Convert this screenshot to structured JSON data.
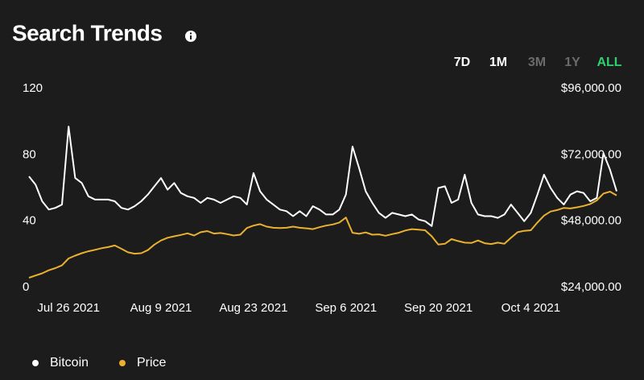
{
  "header": {
    "title": "Search Trends",
    "timeframes": [
      {
        "label": "7D",
        "color": "#ffffff"
      },
      {
        "label": "1M",
        "color": "#ffffff"
      },
      {
        "label": "3M",
        "color": "#6b6b6b"
      },
      {
        "label": "1Y",
        "color": "#6b6b6b"
      },
      {
        "label": "ALL",
        "color": "#2fd16d"
      }
    ]
  },
  "chart_data": {
    "type": "line",
    "x": [
      "2021-07-20",
      "2021-07-21",
      "2021-07-22",
      "2021-07-23",
      "2021-07-24",
      "2021-07-25",
      "2021-07-26",
      "2021-07-27",
      "2021-07-28",
      "2021-07-29",
      "2021-07-30",
      "2021-07-31",
      "2021-08-01",
      "2021-08-02",
      "2021-08-03",
      "2021-08-04",
      "2021-08-05",
      "2021-08-06",
      "2021-08-07",
      "2021-08-08",
      "2021-08-09",
      "2021-08-10",
      "2021-08-11",
      "2021-08-12",
      "2021-08-13",
      "2021-08-14",
      "2021-08-15",
      "2021-08-16",
      "2021-08-17",
      "2021-08-18",
      "2021-08-19",
      "2021-08-20",
      "2021-08-21",
      "2021-08-22",
      "2021-08-23",
      "2021-08-24",
      "2021-08-25",
      "2021-08-26",
      "2021-08-27",
      "2021-08-28",
      "2021-08-29",
      "2021-08-30",
      "2021-08-31",
      "2021-09-01",
      "2021-09-02",
      "2021-09-03",
      "2021-09-04",
      "2021-09-05",
      "2021-09-06",
      "2021-09-07",
      "2021-09-08",
      "2021-09-09",
      "2021-09-10",
      "2021-09-11",
      "2021-09-12",
      "2021-09-13",
      "2021-09-14",
      "2021-09-15",
      "2021-09-16",
      "2021-09-17",
      "2021-09-18",
      "2021-09-19",
      "2021-09-20",
      "2021-09-21",
      "2021-09-22",
      "2021-09-23",
      "2021-09-24",
      "2021-09-25",
      "2021-09-26",
      "2021-09-27",
      "2021-09-28",
      "2021-09-29",
      "2021-09-30",
      "2021-10-01",
      "2021-10-02",
      "2021-10-03",
      "2021-10-04",
      "2021-10-05",
      "2021-10-06",
      "2021-10-07",
      "2021-10-08",
      "2021-10-09",
      "2021-10-10",
      "2021-10-11",
      "2021-10-12",
      "2021-10-13",
      "2021-10-14",
      "2021-10-15",
      "2021-10-16",
      "2021-10-17"
    ],
    "xlim": [
      "2021-07-20",
      "2021-10-17"
    ],
    "xticks": [
      {
        "value": "2021-07-26",
        "label": "Jul 26 2021"
      },
      {
        "value": "2021-08-09",
        "label": "Aug 9 2021"
      },
      {
        "value": "2021-08-23",
        "label": "Aug 23 2021"
      },
      {
        "value": "2021-09-06",
        "label": "Sep 6 2021"
      },
      {
        "value": "2021-09-20",
        "label": "Sep 20 2021"
      },
      {
        "value": "2021-10-04",
        "label": "Oct 4 2021"
      }
    ],
    "ylim": [
      0,
      120
    ],
    "yticks": [
      0,
      40,
      80,
      120
    ],
    "y2lim": [
      24000,
      96000
    ],
    "y2ticks": [
      {
        "value": 24000,
        "label": "$24,000.00"
      },
      {
        "value": 48000,
        "label": "$48,000.00"
      },
      {
        "value": 72000,
        "label": "$72,000.00"
      },
      {
        "value": 96000,
        "label": "$96,000.00"
      }
    ],
    "grid": false,
    "series": [
      {
        "name": "Bitcoin",
        "color": "#ffffff",
        "values": [
          67,
          62,
          52,
          47,
          48,
          50,
          97,
          66,
          63,
          55,
          53,
          53,
          53,
          52,
          48,
          47,
          49,
          52,
          56,
          61,
          66,
          59,
          63,
          57,
          55,
          54,
          51,
          54,
          53,
          51,
          53,
          55,
          54,
          50,
          69,
          58,
          53,
          50,
          47,
          46,
          43,
          46,
          43,
          49,
          47,
          44,
          44,
          47,
          56,
          85,
          72,
          58,
          51,
          45,
          42,
          45,
          44,
          43,
          44,
          41,
          40,
          37,
          60,
          61,
          51,
          53,
          68,
          51,
          44,
          43,
          43,
          42,
          44,
          50,
          45,
          40,
          45,
          56,
          68,
          60,
          54,
          50,
          56,
          58,
          57,
          52,
          54,
          81,
          71,
          58
        ]
      },
      {
        "name": "Price",
        "color": "#e9b12f",
        "axis": "y2",
        "values": [
          27500,
          28300,
          29100,
          30200,
          31000,
          32000,
          34500,
          35500,
          36400,
          37100,
          37600,
          38200,
          38600,
          39200,
          38000,
          36700,
          36200,
          36400,
          37500,
          39500,
          41000,
          42000,
          42500,
          43000,
          43600,
          42800,
          44000,
          44400,
          43500,
          43700,
          43300,
          42800,
          43100,
          45500,
          46400,
          46900,
          46000,
          45600,
          45500,
          45600,
          46000,
          45600,
          45400,
          45100,
          45800,
          46400,
          46800,
          47500,
          49300,
          43800,
          43400,
          43900,
          43100,
          43200,
          42700,
          43300,
          43800,
          44600,
          45100,
          44900,
          44700,
          42500,
          39500,
          39800,
          41500,
          40800,
          40200,
          40100,
          41000,
          40000,
          39700,
          40200,
          39800,
          42000,
          44000,
          44500,
          44700,
          47500,
          50000,
          51500,
          52000,
          52800,
          52600,
          53000,
          53500,
          54200,
          55500,
          58000,
          58700,
          57300
        ]
      }
    ]
  }
}
